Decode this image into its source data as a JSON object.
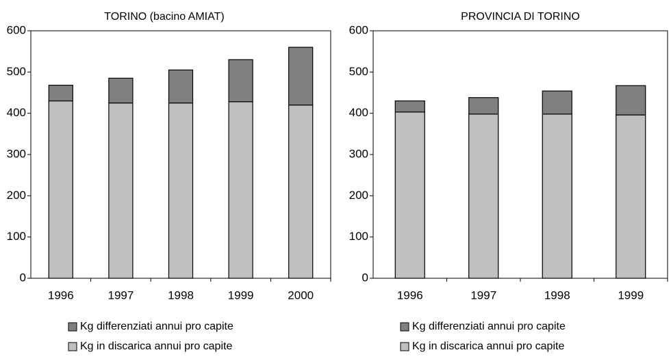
{
  "chart_data": [
    {
      "type": "stacked_bar",
      "title": "TORINO (bacino AMIAT)",
      "categories": [
        "1996",
        "1997",
        "1998",
        "1999",
        "2000"
      ],
      "series": [
        {
          "name": "Kg in discarica annui pro capite",
          "color": "#c0c0c0",
          "values": [
            430,
            425,
            425,
            428,
            420
          ]
        },
        {
          "name": "Kg differenziati annui pro capite",
          "color": "#808080",
          "values": [
            38,
            60,
            80,
            102,
            140
          ]
        }
      ],
      "ylim": [
        0,
        600
      ],
      "yticks": [
        0,
        100,
        200,
        300,
        400,
        500,
        600
      ]
    },
    {
      "type": "stacked_bar",
      "title": "PROVINCIA DI TORINO",
      "categories": [
        "1996",
        "1997",
        "1998",
        "1999"
      ],
      "series": [
        {
          "name": "Kg in discarica annui pro capite",
          "color": "#c0c0c0",
          "values": [
            403,
            398,
            398,
            396
          ]
        },
        {
          "name": "Kg differenziati annui pro capite",
          "color": "#808080",
          "values": [
            27,
            40,
            56,
            71
          ]
        }
      ],
      "ylim": [
        0,
        600
      ],
      "yticks": [
        0,
        100,
        200,
        300,
        400,
        500,
        600
      ]
    }
  ]
}
